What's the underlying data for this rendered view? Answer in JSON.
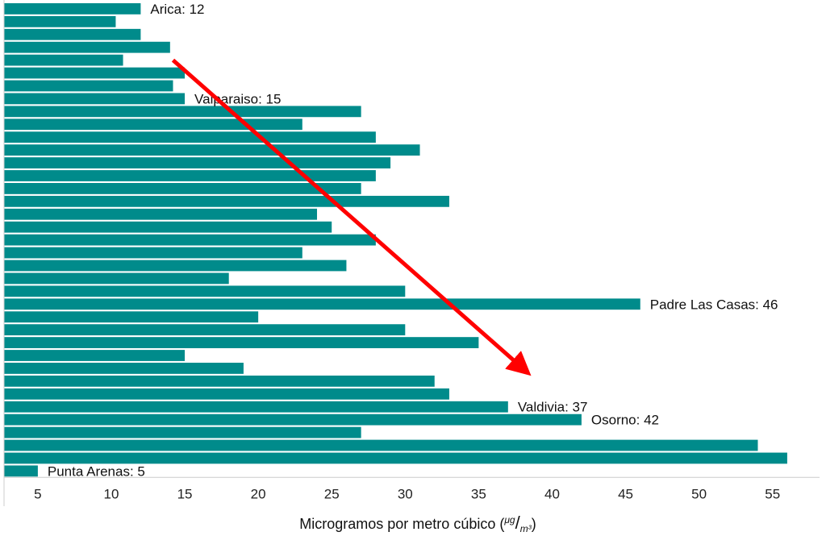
{
  "chart_data": {
    "type": "bar",
    "orientation": "horizontal",
    "xlabel_prefix": "Microgramos por metro cúbico (",
    "xlabel_unit_num": "μg",
    "xlabel_unit_slash": "/",
    "xlabel_unit_den": "m³",
    "xlabel_suffix": ")",
    "xticks": [
      5,
      10,
      15,
      20,
      25,
      30,
      35,
      40,
      45,
      50,
      55
    ],
    "xlim": [
      2.7,
      58.2
    ],
    "values": [
      12,
      10.3,
      12,
      14,
      10.8,
      15,
      14.2,
      15,
      27,
      23,
      28,
      31,
      29,
      28,
      27,
      33,
      24,
      25,
      28,
      23,
      26,
      18,
      30,
      46,
      20,
      30,
      35,
      15,
      19,
      32,
      33,
      37,
      42,
      27,
      54,
      56,
      5
    ],
    "bar_color": "#008b8b",
    "annotations": [
      {
        "text": "Arica: 12",
        "bar_index": 0
      },
      {
        "text": "Valparaiso: 15",
        "bar_index": 7
      },
      {
        "text": "Padre Las Casas: 46",
        "bar_index": 23
      },
      {
        "text": "Valdivia: 37",
        "bar_index": 31
      },
      {
        "text": "Osorno: 42",
        "bar_index": 32
      },
      {
        "text": "Punta Arenas: 5",
        "bar_index": 36
      }
    ],
    "trend_arrow": {
      "color": "#ff0000",
      "from": {
        "bar_index": 4,
        "value": 14.2
      },
      "to": {
        "bar_index": 28,
        "value": 38
      }
    },
    "grid": false,
    "legend": "none"
  }
}
